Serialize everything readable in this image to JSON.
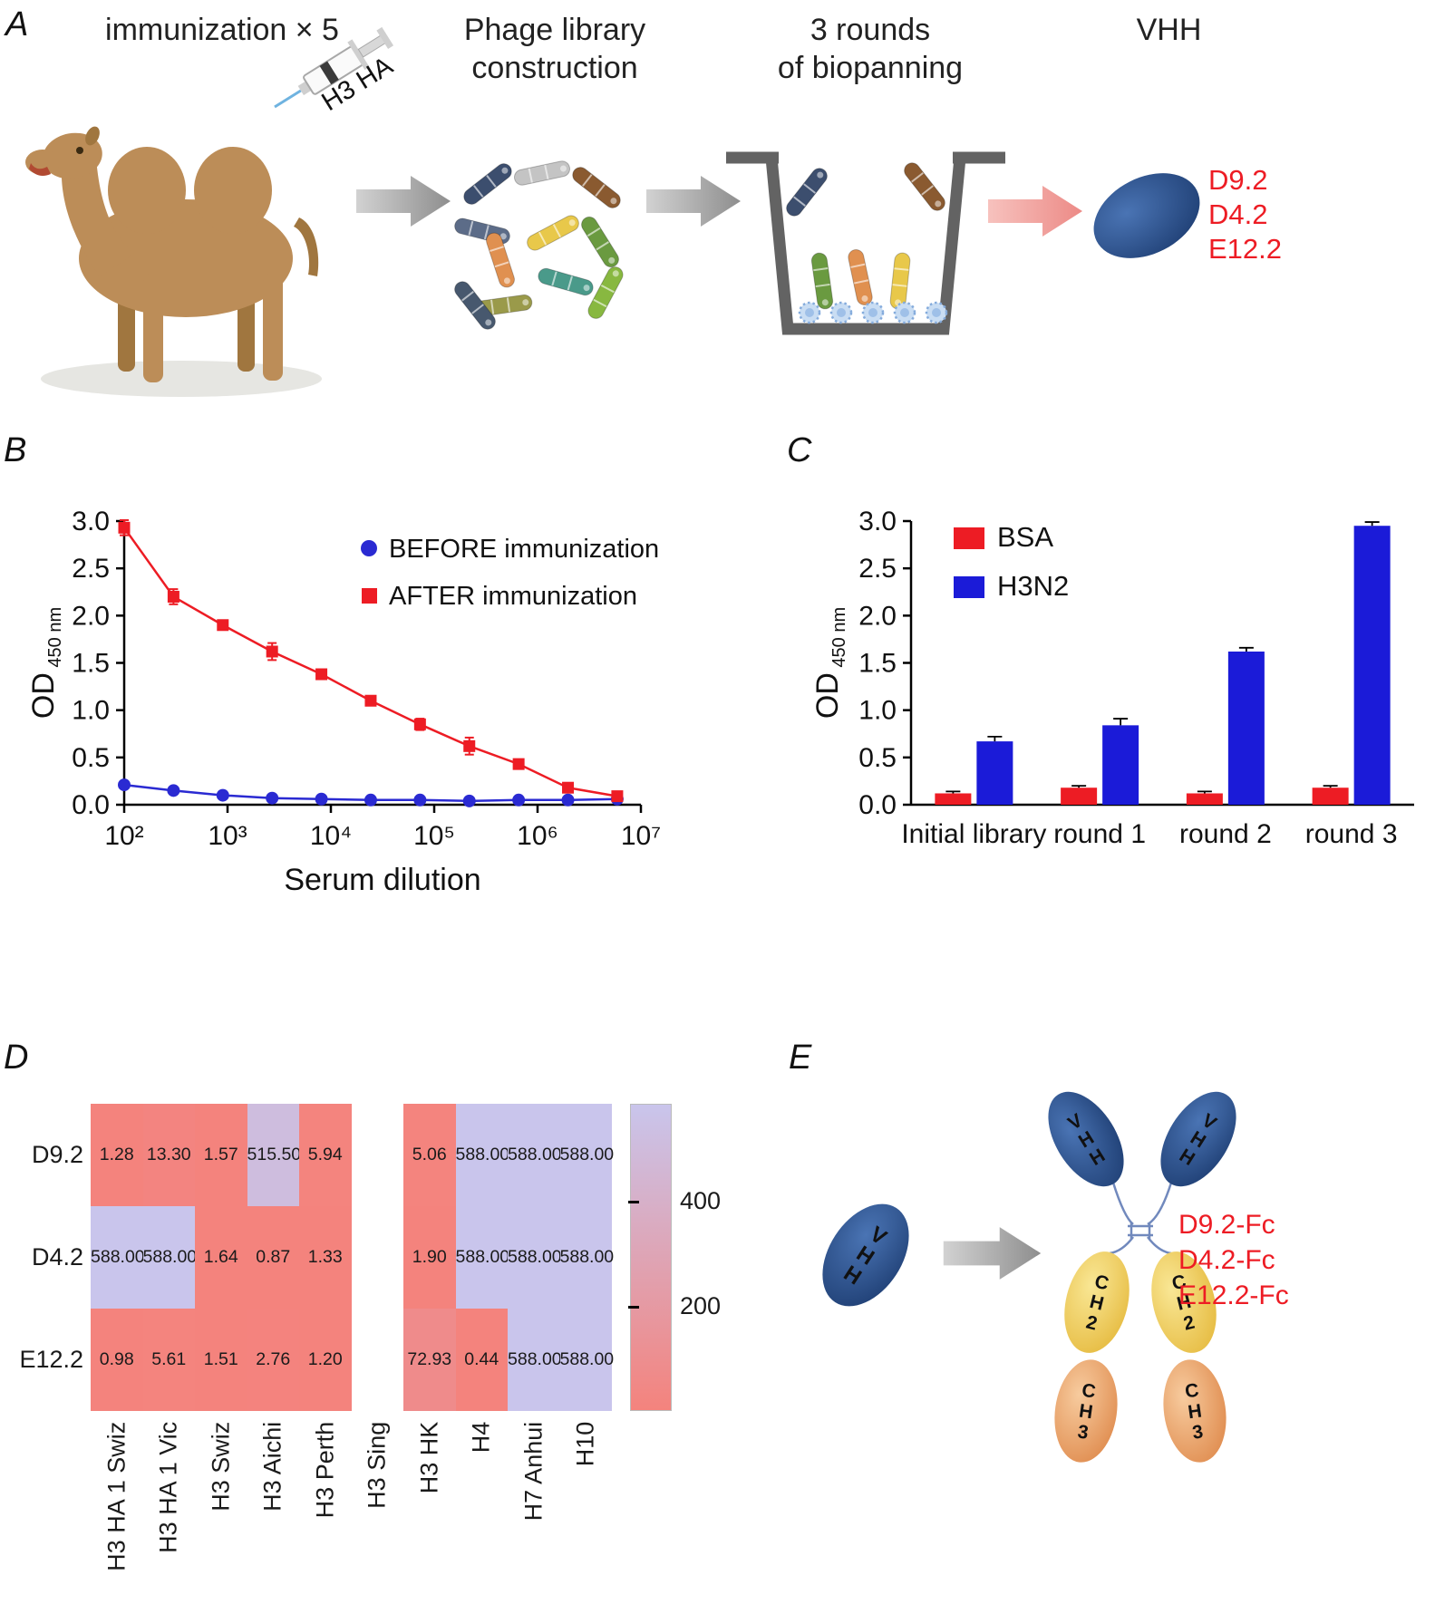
{
  "colors": {
    "accent_red": "#ed1c24",
    "chart_red": "#ed1c24",
    "chart_blue": "#1b1bd8",
    "heat_low": "#f4837d",
    "heat_high": "#c9c5ec"
  },
  "panelA": {
    "label": "A",
    "step1_title": "immunization × 5",
    "syringe_label": "H3 HA",
    "step2_title": "Phage library\nconstruction",
    "step3_title": "3 rounds\nof biopanning",
    "step4_title": "VHH",
    "vhh_clones": [
      "D9.2",
      "D4.2",
      "E12.2"
    ],
    "phage_colors": [
      "#3c4e6e",
      "#c4c4c4",
      "#8a5a30",
      "#5c6c88",
      "#e09050",
      "#e8c84a",
      "#6a9a40",
      "#4a9a8a",
      "#9a9a4a",
      "#47586e",
      "#88b840"
    ]
  },
  "panelB": {
    "label": "B"
  },
  "panelC": {
    "label": "C"
  },
  "panelD": {
    "label": "D"
  },
  "panelE": {
    "label": "E",
    "vhh_label": "VHH",
    "domain_labels": [
      "VHH",
      "CH2",
      "CH3"
    ],
    "fc_labels": [
      "D9.2-Fc",
      "D4.2-Fc",
      "E12.2-Fc"
    ]
  },
  "chart_data": [
    {
      "id": "panelB",
      "type": "line",
      "xlabel": "Serum dilution",
      "ylabel": "OD",
      "ylabel_sub": "450 nm",
      "x_scale": "log10",
      "x_tick_labels": [
        "10²",
        "10³",
        "10⁴",
        "10⁵",
        "10⁶",
        "10⁷"
      ],
      "x_tick_values": [
        100,
        1000,
        10000,
        100000,
        1000000,
        10000000
      ],
      "ylim": [
        0,
        3
      ],
      "y_ticks": [
        0,
        0.5,
        1,
        1.5,
        2,
        2.5,
        3
      ],
      "x": [
        100,
        300,
        900,
        2700,
        8100,
        24300,
        72900,
        218700,
        656100,
        1968300,
        5904900
      ],
      "series": [
        {
          "name": "BEFORE immunization",
          "color": "#2a2ad2",
          "marker": "circle",
          "y": [
            0.21,
            0.15,
            0.1,
            0.07,
            0.06,
            0.05,
            0.05,
            0.04,
            0.05,
            0.05,
            0.06
          ],
          "yerr": [
            0.02,
            0.02,
            0.01,
            0.01,
            0.01,
            0.01,
            0.01,
            0.01,
            0.01,
            0.01,
            0.01
          ]
        },
        {
          "name": "AFTER immunization",
          "color": "#ed1c24",
          "marker": "square",
          "y": [
            2.93,
            2.2,
            1.9,
            1.62,
            1.38,
            1.1,
            0.85,
            0.62,
            0.43,
            0.18,
            0.09
          ],
          "yerr": [
            0.08,
            0.08,
            0.04,
            0.09,
            0.04,
            0.04,
            0.06,
            0.09,
            0.04,
            0.03,
            0.02
          ]
        }
      ],
      "legend_position": "top-right"
    },
    {
      "id": "panelC",
      "type": "bar",
      "categories": [
        "Initial library",
        "round 1",
        "round 2",
        "round 3"
      ],
      "ylabel": "OD",
      "ylabel_sub": "450 nm",
      "ylim": [
        0,
        3
      ],
      "y_ticks": [
        0,
        0.5,
        1,
        1.5,
        2,
        2.5,
        3
      ],
      "series": [
        {
          "name": "BSA",
          "color": "#ed1c24",
          "values": [
            0.12,
            0.18,
            0.12,
            0.18
          ],
          "yerr": [
            0.02,
            0.02,
            0.02,
            0.02
          ]
        },
        {
          "name": "H3N2",
          "color": "#1b1bd8",
          "values": [
            0.67,
            0.84,
            1.62,
            2.95
          ],
          "yerr": [
            0.05,
            0.07,
            0.04,
            0.04
          ]
        }
      ],
      "legend_position": "top-left"
    },
    {
      "id": "panelD",
      "type": "heatmap",
      "rows": [
        "D9.2",
        "D4.2",
        "E12.2"
      ],
      "columns": [
        "H3 HA 1 Swiz",
        "H3 HA 1 Vic",
        "H3 Swiz",
        "H3 Aichi",
        "H3 Perth",
        "H3 Sing",
        "H3 HK",
        "H4",
        "H7 Anhui",
        "H10"
      ],
      "values": [
        [
          1.28,
          13.3,
          1.57,
          515.5,
          5.94,
          null,
          5.06,
          588.0,
          588.0,
          588.0
        ],
        [
          588.0,
          588.0,
          1.64,
          0.87,
          1.33,
          null,
          1.9,
          588.0,
          588.0,
          588.0
        ],
        [
          0.98,
          5.61,
          1.51,
          2.76,
          1.2,
          null,
          72.93,
          0.44,
          588.0,
          588.0
        ]
      ],
      "vmin": 0,
      "vmax": 588,
      "colorbar_ticks": [
        200,
        400
      ],
      "color_low": "#f4837d",
      "color_high": "#c9c5ec"
    }
  ]
}
